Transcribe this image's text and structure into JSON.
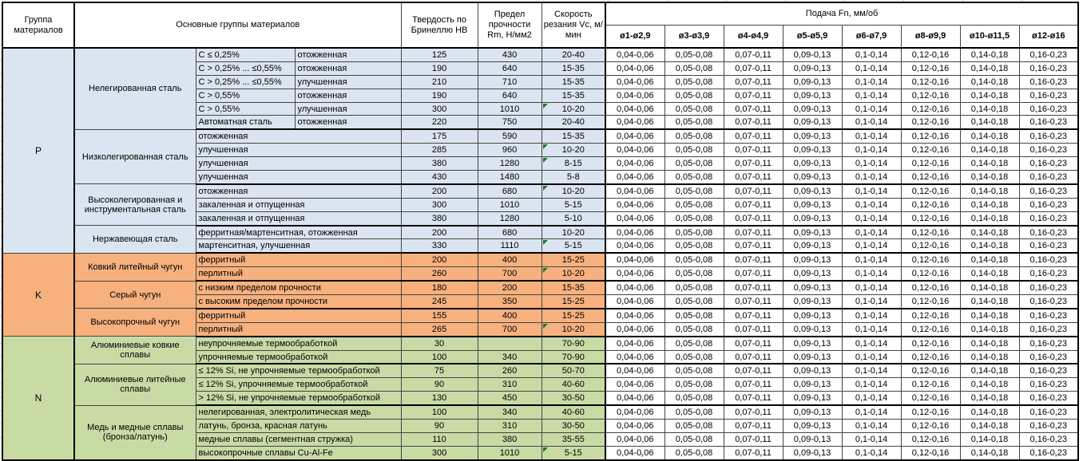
{
  "table": {
    "header": {
      "col_group": "Группа материалов",
      "col_main_groups": "Основные группы материалов",
      "col_hardness": "Твердость по Бринеллю HB",
      "col_strength": "Предел прочности Rm, Н/мм2",
      "col_speed": "Скорость резания Vc, м/мин",
      "feed_title": "Подача Fn, мм/об",
      "feed_columns": [
        "ø1-ø2,9",
        "ø3-ø3,9",
        "ø4-ø4,9",
        "ø5-ø5,9",
        "ø6-ø7,9",
        "ø8-ø9,9",
        "ø10-ø11,5",
        "ø12-ø16"
      ]
    },
    "feed_values": [
      "0,04-0,06",
      "0,05-0,08",
      "0,07-0,11",
      "0,09-0,13",
      "0,1-0,14",
      "0,12-0,16",
      "0,14-0,18",
      "0,16-0,23"
    ],
    "error_flag_color": "#1a7a2e",
    "sections": [
      {
        "group": "P",
        "color": "#DBE5F1",
        "subgroups": [
          {
            "name": "Нелегированная сталь",
            "rows": [
              {
                "c1": "C ≤ 0,25%",
                "c2": "отожженная",
                "hb": "125",
                "rm": "430",
                "vc": "20-40",
                "flag": false
              },
              {
                "c1": "C > 0,25% ... ≤0,55%",
                "c2": "отожженная",
                "hb": "190",
                "rm": "640",
                "vc": "15-35",
                "flag": false
              },
              {
                "c1": "C > 0,25% ... ≤0,55%",
                "c2": "улучшенная",
                "hb": "210",
                "rm": "710",
                "vc": "15-35",
                "flag": false
              },
              {
                "c1": "C > 0,55%",
                "c2": "отожженная",
                "hb": "190",
                "rm": "640",
                "vc": "15-35",
                "flag": false
              },
              {
                "c1": "C > 0,55%",
                "c2": "улучшенная",
                "hb": "300",
                "rm": "1010",
                "vc": "10-20",
                "flag": true
              },
              {
                "c1": "Автоматная сталь",
                "c2": "отожженная",
                "hb": "220",
                "rm": "750",
                "vc": "20-40",
                "flag": false
              }
            ]
          },
          {
            "name": "Низколегированная сталь",
            "rows": [
              {
                "c1": "отожженная",
                "c2": null,
                "hb": "175",
                "rm": "590",
                "vc": "15-35",
                "flag": false
              },
              {
                "c1": "улучшенная",
                "c2": null,
                "hb": "285",
                "rm": "960",
                "vc": "10-20",
                "flag": true
              },
              {
                "c1": "улучшенная",
                "c2": null,
                "hb": "380",
                "rm": "1280",
                "vc": "8-15",
                "flag": true
              },
              {
                "c1": "улучшенная",
                "c2": null,
                "hb": "430",
                "rm": "1480",
                "vc": "5-8",
                "flag": false
              }
            ]
          },
          {
            "name": "Высоколегированная и инструментальная сталь",
            "rows": [
              {
                "c1": "отожженная",
                "c2": null,
                "hb": "200",
                "rm": "680",
                "vc": "10-20",
                "flag": true
              },
              {
                "c1": "закаленная и отпущенная",
                "c2": null,
                "hb": "300",
                "rm": "1010",
                "vc": "5-15",
                "flag": false
              },
              {
                "c1": "закаленная и отпущенная",
                "c2": null,
                "hb": "380",
                "rm": "1280",
                "vc": "5-10",
                "flag": false
              }
            ]
          },
          {
            "name": "Нержавеющая сталь",
            "rows": [
              {
                "c1": "ферритная/мартенситная, отожженная",
                "c2": null,
                "hb": "200",
                "rm": "680",
                "vc": "10-20",
                "flag": false
              },
              {
                "c1": "мартенситная, улучшенная",
                "c2": null,
                "hb": "330",
                "rm": "1110",
                "vc": "5-15",
                "flag": true
              }
            ]
          }
        ]
      },
      {
        "group": "K",
        "color": "#F7B17E",
        "subgroups": [
          {
            "name": "Ковкий литейный чугун",
            "rows": [
              {
                "c1": "ферритный",
                "c2": null,
                "hb": "200",
                "rm": "400",
                "vc": "15-25",
                "flag": false
              },
              {
                "c1": "перлитный",
                "c2": null,
                "hb": "260",
                "rm": "700",
                "vc": "10-20",
                "flag": true
              }
            ]
          },
          {
            "name": "Серый чугун",
            "rows": [
              {
                "c1": "с низким пределом прочности",
                "c2": null,
                "hb": "180",
                "rm": "200",
                "vc": "15-35",
                "flag": false
              },
              {
                "c1": "с высоким пределом прочности",
                "c2": null,
                "hb": "245",
                "rm": "350",
                "vc": "15-25",
                "flag": false
              }
            ]
          },
          {
            "name": "Высокопрочный чугун",
            "rows": [
              {
                "c1": "ферритный",
                "c2": null,
                "hb": "155",
                "rm": "400",
                "vc": "15-25",
                "flag": false
              },
              {
                "c1": "перлитный",
                "c2": null,
                "hb": "265",
                "rm": "700",
                "vc": "10-20",
                "flag": true
              }
            ]
          }
        ]
      },
      {
        "group": "N",
        "color": "#C9DBA5",
        "subgroups": [
          {
            "name": "Алюминиевые ковкие сплавы",
            "rows": [
              {
                "c1": "неупрочняемые термообработкой",
                "c2": null,
                "hb": "30",
                "rm": "",
                "vc": "70-90",
                "flag": false
              },
              {
                "c1": "упрочняемые термообработкой",
                "c2": null,
                "hb": "100",
                "rm": "340",
                "vc": "70-90",
                "flag": false
              }
            ]
          },
          {
            "name": "Алюминиевые литейные сплавы",
            "rows": [
              {
                "c1": "≤ 12% Si, не упрочняемые термообработкой",
                "c2": null,
                "hb": "75",
                "rm": "260",
                "vc": "50-70",
                "flag": false
              },
              {
                "c1": "≤ 12% Si, упрочняемые термообработкой",
                "c2": null,
                "hb": "90",
                "rm": "310",
                "vc": "40-60",
                "flag": false
              },
              {
                "c1": "> 12% Si, не упрочняемые термообработкой",
                "c2": null,
                "hb": "130",
                "rm": "450",
                "vc": "30-50",
                "flag": false
              }
            ]
          },
          {
            "name": "Медь и медные сплавы (бронза/латунь)",
            "rows": [
              {
                "c1": "нелегированная, электролитическая медь",
                "c2": null,
                "hb": "100",
                "rm": "340",
                "vc": "40-60",
                "flag": false
              },
              {
                "c1": "латунь, бронза, красная латунь",
                "c2": null,
                "hb": "90",
                "rm": "310",
                "vc": "30-50",
                "flag": false
              },
              {
                "c1": "медные сплавы (сегментная стружка)",
                "c2": null,
                "hb": "110",
                "rm": "380",
                "vc": "35-55",
                "flag": false
              },
              {
                "c1": "высокопрочные сплавы Cu-Al-Fe",
                "c2": null,
                "hb": "300",
                "rm": "1010",
                "vc": "5-15",
                "flag": true
              }
            ]
          }
        ]
      }
    ]
  }
}
